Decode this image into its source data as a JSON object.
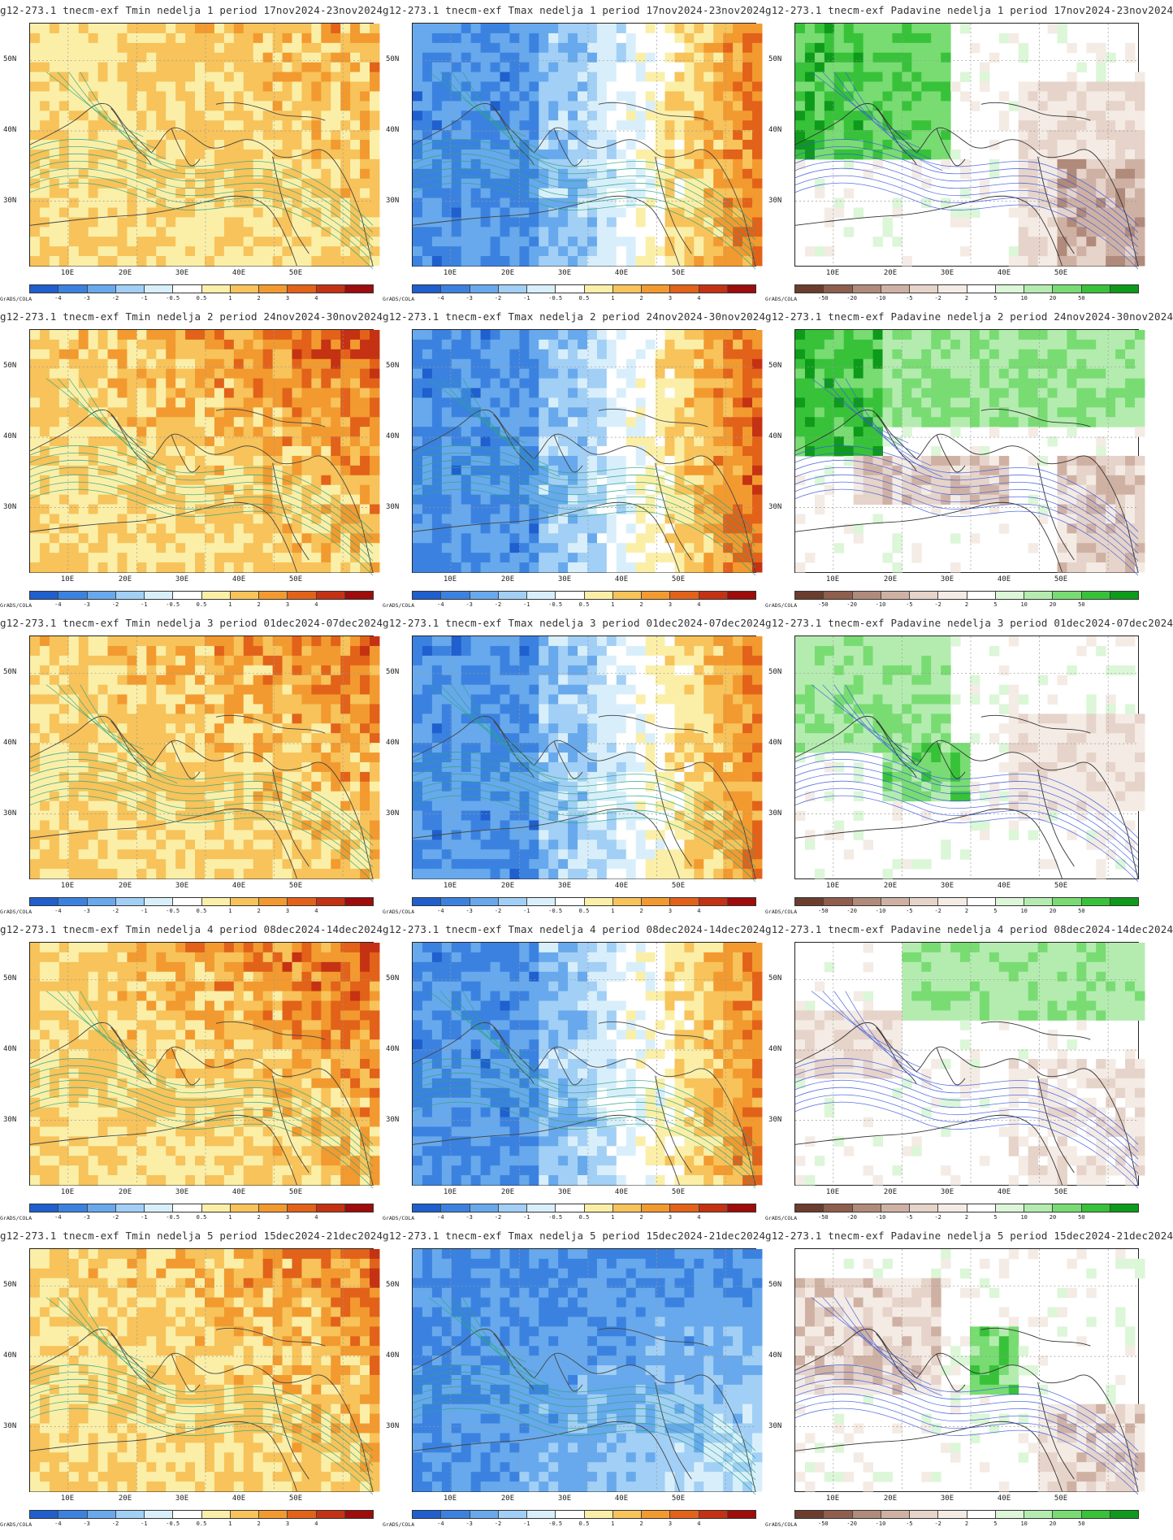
{
  "figure": {
    "branding": "GrADS/COLA",
    "lat_labels": [
      "50N",
      "40N",
      "30N"
    ],
    "lon_labels": [
      "10E",
      "20E",
      "30E",
      "40E",
      "50E"
    ],
    "colorbars": {
      "temperature": {
        "ticks": [
          "-4",
          "-3",
          "-2",
          "-1",
          "-0.5",
          "0.5",
          "1",
          "2",
          "3",
          "4"
        ],
        "colors": [
          "#1f5fce",
          "#3b82e0",
          "#67a9ec",
          "#a2cff5",
          "#d8effb",
          "#ffffff",
          "#fbefa8",
          "#f7c35a",
          "#f29a2f",
          "#e2621a",
          "#c43213",
          "#9e0c0c"
        ]
      },
      "precipitation": {
        "ticks": [
          "-50",
          "-20",
          "-10",
          "-5",
          "-2",
          "2",
          "5",
          "10",
          "20",
          "50"
        ],
        "colors": [
          "#6b3d2e",
          "#8f5e4d",
          "#b08a7a",
          "#cfb1a4",
          "#e6d3c9",
          "#f4ebe5",
          "#ffffff",
          "#dcf6d8",
          "#b4ecb0",
          "#78dc72",
          "#38c23a",
          "#0e9a1a"
        ]
      }
    },
    "rows": [
      {
        "tmin": {
          "title": "g12-273.1 tnecm-exf Tmin nedelja 1 period 17nov2024-23nov2024"
        },
        "tmax": {
          "title": "g12-273.1 tnecm-exf Tmax nedelja 1 period 17nov2024-23nov2024"
        },
        "padavine": {
          "title": "g12-273.1 tnecm-exf Padavine nedelja 1 period 17nov2024-23nov2024"
        }
      },
      {
        "tmin": {
          "title": "g12-273.1 tnecm-exf Tmin nedelja 2 period 24nov2024-30nov2024"
        },
        "tmax": {
          "title": "g12-273.1 tnecm-exf Tmax nedelja 2 period 24nov2024-30nov2024"
        },
        "padavine": {
          "title": "g12-273.1 tnecm-exf Padavine nedelja 2 period 24nov2024-30nov2024"
        }
      },
      {
        "tmin": {
          "title": "g12-273.1 tnecm-exf Tmin nedelja 3 period 01dec2024-07dec2024"
        },
        "tmax": {
          "title": "g12-273.1 tnecm-exf Tmax nedelja 3 period 01dec2024-07dec2024"
        },
        "padavine": {
          "title": "g12-273.1 tnecm-exf Padavine nedelja 3 period 01dec2024-07dec2024"
        }
      },
      {
        "tmin": {
          "title": "g12-273.1 tnecm-exf Tmin nedelja 4 period 08dec2024-14dec2024"
        },
        "tmax": {
          "title": "g12-273.1 tnecm-exf Tmax nedelja 4 period 08dec2024-14dec2024"
        },
        "padavine": {
          "title": "g12-273.1 tnecm-exf Padavine nedelja 4 period 08dec2024-14dec2024"
        }
      },
      {
        "tmin": {
          "title": "g12-273.1 tnecm-exf Tmin nedelja 5 period 15dec2024-21dec2024"
        },
        "tmax": {
          "title": "g12-273.1 tnecm-exf Tmax nedelja 5 period 15dec2024-21dec2024"
        },
        "padavine": {
          "title": "g12-273.1 tnecm-exf Padavine nedelja 5 period 15dec2024-21dec2024"
        }
      }
    ]
  }
}
